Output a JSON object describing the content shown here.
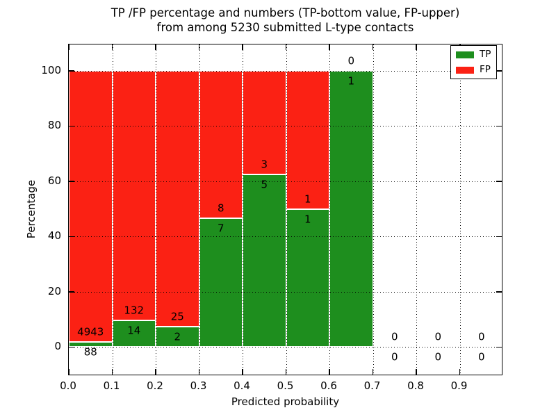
{
  "title": {
    "line1": "TP /FP percentage and numbers (TP-bottom value, FP-upper)",
    "line2": "from among 5230 submitted L-type contacts"
  },
  "axes": {
    "xlabel": "Predicted probability",
    "ylabel": "Percentage",
    "x_tick_labels": [
      "0.0",
      "0.1",
      "0.2",
      "0.3",
      "0.4",
      "0.5",
      "0.6",
      "0.7",
      "0.8",
      "0.9"
    ],
    "y_tick_labels": [
      "0",
      "20",
      "40",
      "60",
      "80",
      "100"
    ],
    "xlim": [
      0.0,
      1.0
    ],
    "ylim": [
      -10.5,
      109.5
    ],
    "grid_style": "dotted-black"
  },
  "legend": {
    "position": "upper-right",
    "items": [
      {
        "label": "TP",
        "color": "#1e8e1e"
      },
      {
        "label": "FP",
        "color": "#fb2114"
      }
    ]
  },
  "colors": {
    "tp_green": "#1e8e1e",
    "fp_red": "#fb2114",
    "bar_edge": "#ffffff",
    "grid": "#000000",
    "background": "#ffffff"
  },
  "chart_data": {
    "type": "bar",
    "stacked": true,
    "normalization": "each bin stacked to 100 percent",
    "title": "TP /FP percentage and numbers (TP-bottom value, FP-upper) from among 5230 submitted L-type contacts",
    "xlabel": "Predicted probability",
    "ylabel": "Percentage",
    "bin_width": 0.1,
    "bin_starts": [
      0.0,
      0.1,
      0.2,
      0.3,
      0.4,
      0.5,
      0.6,
      0.7,
      0.8,
      0.9
    ],
    "categories": [
      "0.0-0.1",
      "0.1-0.2",
      "0.2-0.3",
      "0.3-0.4",
      "0.4-0.5",
      "0.5-0.6",
      "0.6-0.7",
      "0.7-0.8",
      "0.8-0.9",
      "0.9-1.0"
    ],
    "series": [
      {
        "name": "TP",
        "color": "#1e8e1e",
        "counts": [
          88,
          14,
          2,
          7,
          5,
          1,
          1,
          0,
          0,
          0
        ]
      },
      {
        "name": "FP",
        "color": "#fb2114",
        "counts": [
          4943,
          132,
          25,
          8,
          3,
          1,
          0,
          0,
          0,
          0
        ]
      }
    ],
    "tp_percent": [
      1.75,
      9.59,
      7.41,
      46.67,
      62.5,
      50.0,
      100.0,
      0,
      0,
      0
    ],
    "total_submitted": 5230
  }
}
